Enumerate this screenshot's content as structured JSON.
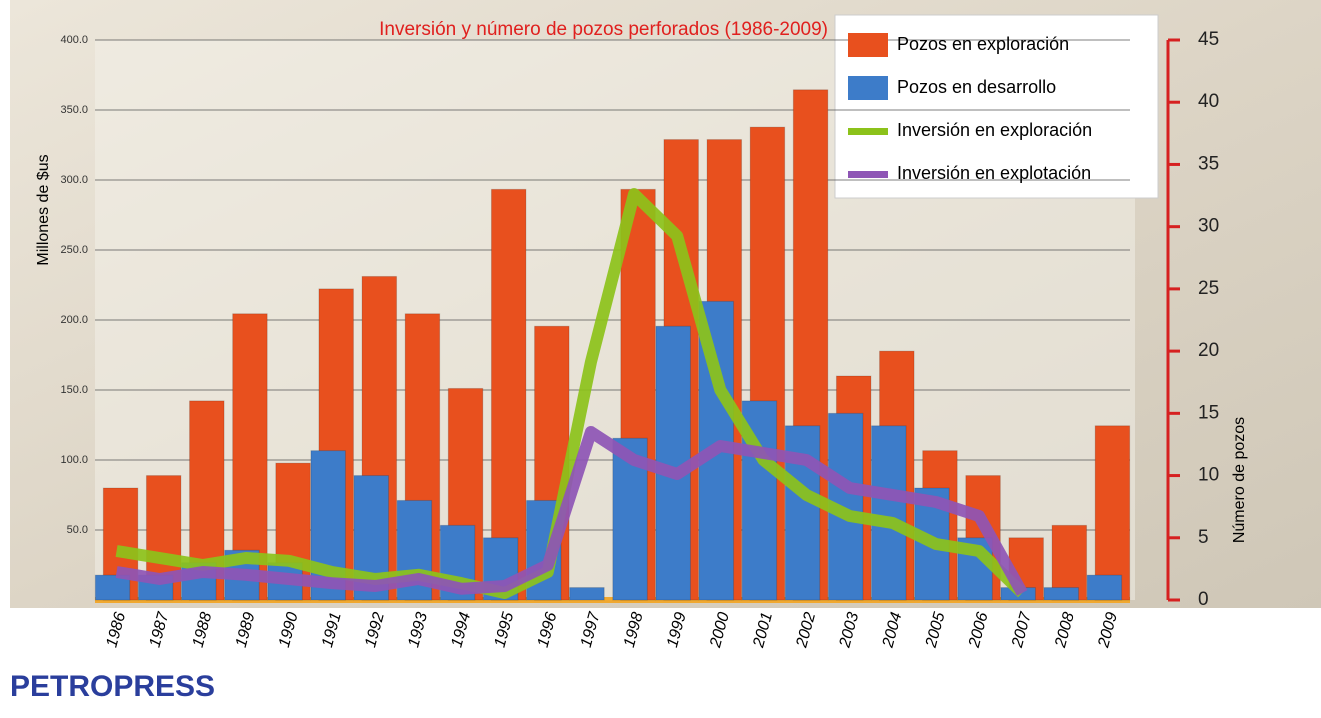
{
  "chart_data": {
    "type": "combo",
    "title": "Inversión y número de pozos perforados (1986-2009)",
    "y_axis_label": "Millones de $us",
    "y2_axis_label": "Número de pozos",
    "categories": [
      "1986",
      "1987",
      "1988",
      "1989",
      "1990",
      "1991",
      "1992",
      "1993",
      "1994",
      "1995",
      "1996",
      "1997",
      "1998",
      "1999",
      "2000",
      "2001",
      "2002",
      "2003",
      "2004",
      "2005",
      "2006",
      "2007",
      "2008",
      "2009"
    ],
    "series": [
      {
        "name": "Pozos en exploración",
        "color": "#e8501e",
        "kind": "bar",
        "axis": "y2",
        "values": [
          9,
          10,
          16,
          23,
          11,
          25,
          26,
          23,
          17,
          33,
          22,
          0,
          33,
          37,
          37,
          38,
          41,
          18,
          20,
          12,
          10,
          5,
          6,
          14
        ]
      },
      {
        "name": "Pozos en desarrollo",
        "color": "#3d7cc9",
        "kind": "bar",
        "axis": "y2",
        "values": [
          2,
          2,
          3,
          4,
          3,
          12,
          10,
          8,
          6,
          5,
          8,
          1,
          13,
          22,
          24,
          16,
          14,
          15,
          14,
          9,
          5,
          1,
          1,
          2
        ]
      },
      {
        "name": "Inversión en exploración",
        "color": "#8cc21a",
        "kind": "line",
        "values": [
          35,
          30,
          25,
          30,
          28,
          20,
          15,
          18,
          12,
          5,
          20,
          170,
          290,
          260,
          150,
          100,
          75,
          60,
          55,
          40,
          35,
          5,
          null,
          null
        ]
      },
      {
        "name": "Inversión en explotación",
        "color": "#8e55b5",
        "kind": "line",
        "values": [
          20,
          15,
          20,
          18,
          15,
          12,
          10,
          15,
          8,
          10,
          25,
          120,
          100,
          90,
          110,
          105,
          100,
          80,
          75,
          70,
          60,
          5,
          null,
          null
        ]
      }
    ],
    "ylim": [
      0,
      400
    ],
    "yticks": [
      {
        "value": 50,
        "label": "50.0"
      },
      {
        "value": 100,
        "label": "100.0"
      },
      {
        "value": 150,
        "label": "150.0"
      },
      {
        "value": 200,
        "label": "200.0"
      },
      {
        "value": 250,
        "label": "250.0"
      },
      {
        "value": 300,
        "label": "300.0"
      },
      {
        "value": 350,
        "label": "350.0"
      },
      {
        "value": 400,
        "label": "400.0"
      }
    ],
    "y2lim": [
      0,
      45
    ],
    "y2ticks": [
      0,
      5,
      10,
      15,
      20,
      25,
      30,
      35,
      40,
      45
    ],
    "grid": true,
    "legend": "top-right",
    "logo": "PETROPRESS"
  }
}
